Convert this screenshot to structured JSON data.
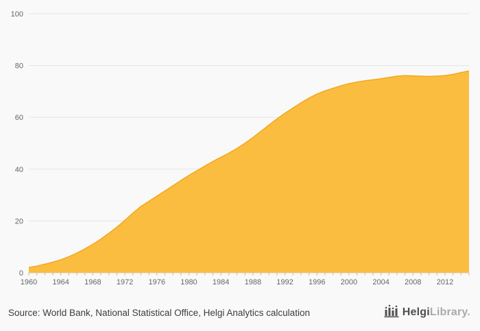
{
  "chart_data": {
    "type": "area",
    "title": "",
    "xlabel": "",
    "ylabel": "",
    "ylim": [
      0,
      100
    ],
    "y_ticks": [
      0,
      20,
      40,
      60,
      80,
      100
    ],
    "x_tick_interval": 4,
    "x_label_years": [
      1960,
      1964,
      1968,
      1972,
      1976,
      1980,
      1984,
      1988,
      1992,
      1996,
      2000,
      2004,
      2008,
      2012
    ],
    "x": [
      1960,
      1961,
      1962,
      1963,
      1964,
      1965,
      1966,
      1967,
      1968,
      1969,
      1970,
      1971,
      1972,
      1973,
      1974,
      1975,
      1976,
      1977,
      1978,
      1979,
      1980,
      1981,
      1982,
      1983,
      1984,
      1985,
      1986,
      1987,
      1988,
      1989,
      1990,
      1991,
      1992,
      1993,
      1994,
      1995,
      1996,
      1997,
      1998,
      1999,
      2000,
      2001,
      2002,
      2003,
      2004,
      2005,
      2006,
      2007,
      2008,
      2009,
      2010,
      2011,
      2012,
      2013,
      2014,
      2015
    ],
    "values": [
      2.0,
      2.6,
      3.3,
      4.1,
      5.0,
      6.2,
      7.6,
      9.2,
      11.0,
      13.0,
      15.2,
      17.6,
      20.2,
      23.0,
      25.6,
      27.6,
      29.6,
      31.6,
      33.6,
      35.6,
      37.6,
      39.4,
      41.2,
      43.0,
      44.6,
      46.2,
      48.0,
      50.0,
      52.2,
      54.6,
      57.0,
      59.4,
      61.6,
      63.6,
      65.6,
      67.4,
      69.0,
      70.2,
      71.2,
      72.2,
      73.0,
      73.6,
      74.1,
      74.5,
      74.9,
      75.4,
      75.9,
      76.1,
      76.0,
      75.9,
      75.8,
      75.9,
      76.1,
      76.6,
      77.3,
      77.9
    ],
    "colors": {
      "fill": "#fbbd3f",
      "line": "#f3a81c",
      "grid": "#e4e4e4",
      "baseline": "#cfcfcf",
      "tick": "#bbbbbb",
      "label": "#666666",
      "background": "#f9f9f9"
    },
    "legend": "none",
    "grid": "horizontal"
  },
  "footer": {
    "source_text": "Source: World Bank, National Statistical Office, Helgi Analytics calculation",
    "logo": {
      "brand_bold": "Helgi",
      "brand_light": "Library",
      "suffix": "."
    }
  }
}
